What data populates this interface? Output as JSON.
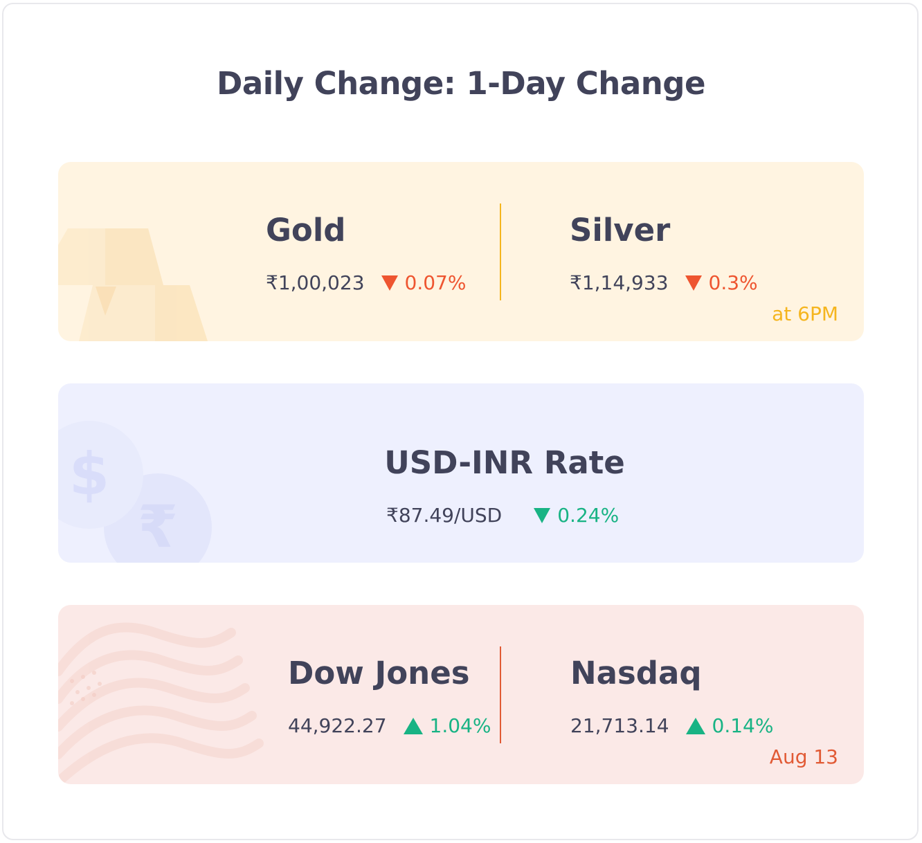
{
  "title": "Daily Change: 1-Day Change",
  "colors": {
    "down_red": "#ee5530",
    "green": "#18b384",
    "gold_accent": "#f5b51e",
    "us_accent": "#e15a35"
  },
  "metals": {
    "items": [
      {
        "name": "Gold",
        "price": "₹1,00,023",
        "direction": "down",
        "change": "0.07%"
      },
      {
        "name": "Silver",
        "price": "₹1,14,933",
        "direction": "down",
        "change": "0.3%"
      }
    ],
    "note": "at 6PM",
    "icon": "gold-bars-icon"
  },
  "currency": {
    "name": "USD-INR Rate",
    "price": "₹87.49/USD",
    "direction": "down",
    "change": "0.24%",
    "icon": "dollar-rupee-coins-icon"
  },
  "indices": {
    "items": [
      {
        "name": "Dow Jones",
        "price": "44,922.27",
        "direction": "up",
        "change": "1.04%"
      },
      {
        "name": "Nasdaq",
        "price": "21,713.14",
        "direction": "up",
        "change": "0.14%"
      }
    ],
    "note": "Aug 13",
    "icon": "us-flag-icon"
  }
}
